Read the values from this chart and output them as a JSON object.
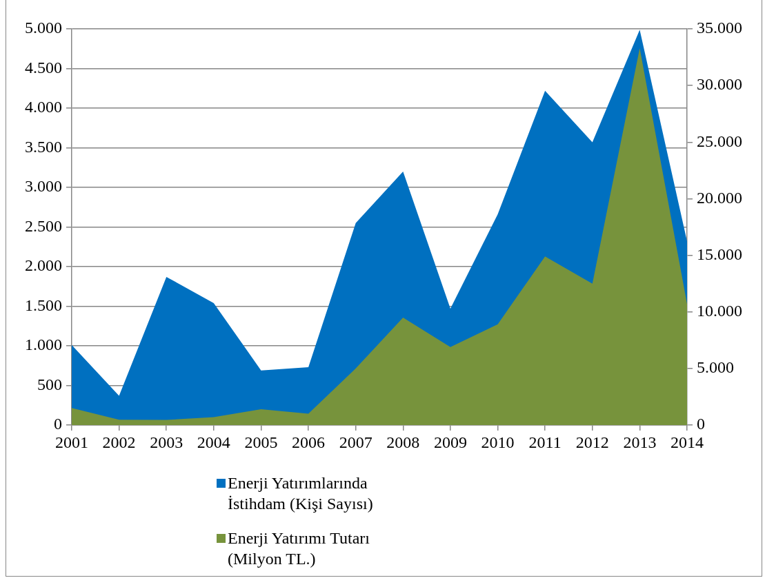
{
  "chart_data": {
    "type": "area",
    "categories": [
      "2001",
      "2002",
      "2003",
      "2004",
      "2005",
      "2006",
      "2007",
      "2008",
      "2009",
      "2010",
      "2011",
      "2012",
      "2013",
      "2014"
    ],
    "series": [
      {
        "name": "Enerji Yatırımlarında İstihdam (Kişi Sayısı)",
        "color": "#0070c0",
        "values": [
          1010,
          370,
          1870,
          1540,
          690,
          730,
          2550,
          3200,
          1470,
          2660,
          4220,
          3570,
          4990,
          2320
        ]
      },
      {
        "name": "Enerji Yatırımı Tutarı (Milyon TL.)",
        "color": "#77933c",
        "axis": "y2",
        "values": [
          1500,
          470,
          450,
          700,
          1400,
          1000,
          5000,
          9500,
          6900,
          8900,
          14900,
          12500,
          33300,
          10700
        ]
      }
    ],
    "ylim": [
      0,
      5000
    ],
    "yticks": [
      0,
      500,
      {
        "value": 1000,
        "label": "1.000"
      },
      {
        "value": 1500,
        "label": "1.500"
      },
      {
        "value": 2000,
        "label": "2.000"
      },
      {
        "value": 2500,
        "label": "2.500"
      },
      {
        "value": 3000,
        "label": "3.000"
      },
      {
        "value": 3500,
        "label": "3.500"
      },
      {
        "value": 4000,
        "label": "4.000"
      },
      {
        "value": 4500,
        "label": "4.500"
      },
      {
        "value": 5000,
        "label": "5.000"
      }
    ],
    "y2lim": [
      0,
      35000
    ],
    "y2ticks": [
      0,
      {
        "value": 5000,
        "label": "5.000"
      },
      {
        "value": 10000,
        "label": "10.000"
      },
      {
        "value": 15000,
        "label": "15.000"
      },
      {
        "value": 20000,
        "label": "20.000"
      },
      {
        "value": 25000,
        "label": "25.000"
      },
      {
        "value": 30000,
        "label": "30.000"
      },
      {
        "value": 35000,
        "label": "35.000"
      }
    ],
    "grid": "y",
    "legend": "bottom"
  }
}
